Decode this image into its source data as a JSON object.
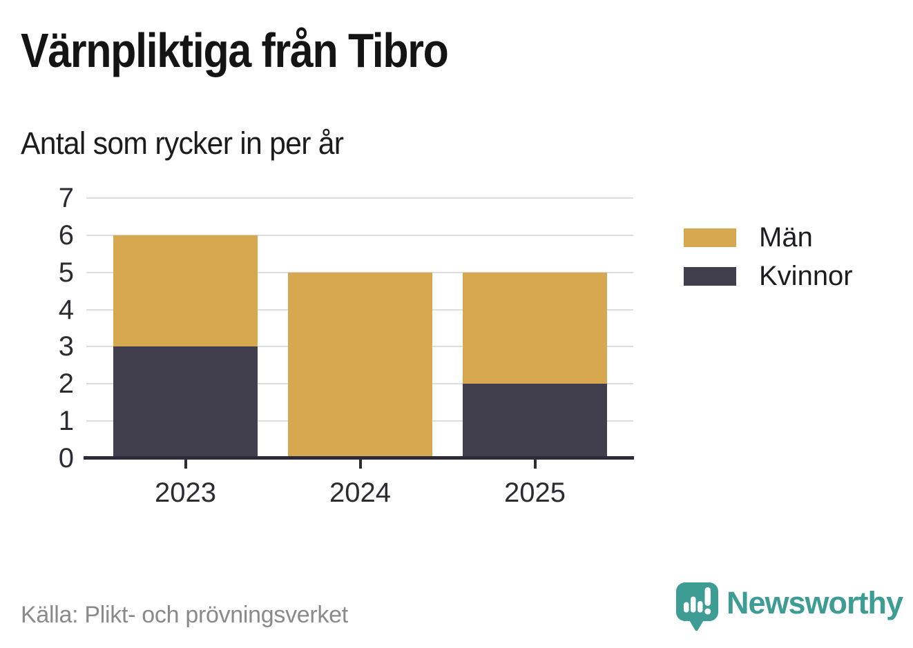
{
  "title": "Värnpliktiga från Tibro",
  "subtitle": "Antal som rycker in per år",
  "source": "Källa: Plikt- och prövningsverket",
  "branding": {
    "wordmark": "Newsworthy",
    "logo_icon": "newsworthy-speech-bubble-chart-icon",
    "teal": "#3d9c94"
  },
  "colors": {
    "men": "#d8a851",
    "women": "#413f4e",
    "axis": "#2c2b37",
    "gridline": "#dddddd",
    "tick_text": "#2b2b31",
    "muted_text": "#8a8a8a"
  },
  "legend": [
    {
      "label": "Män",
      "color": "#d8a851"
    },
    {
      "label": "Kvinnor",
      "color": "#413f4e"
    }
  ],
  "chart_data": {
    "type": "bar",
    "stacked": true,
    "title": "Värnpliktiga från Tibro",
    "subtitle": "Antal som rycker in per år",
    "categories": [
      "2023",
      "2024",
      "2025"
    ],
    "series": [
      {
        "name": "Män",
        "color": "#d8a851",
        "values": [
          3,
          5,
          3
        ]
      },
      {
        "name": "Kvinnor",
        "color": "#413f4e",
        "values": [
          3,
          0,
          2
        ]
      }
    ],
    "totals": [
      6,
      5,
      5
    ],
    "xlabel": "",
    "ylabel": "",
    "ylim": [
      0,
      7
    ],
    "yticks": [
      0,
      1,
      2,
      3,
      4,
      5,
      6,
      7
    ],
    "grid": true,
    "legend_position": "right"
  }
}
